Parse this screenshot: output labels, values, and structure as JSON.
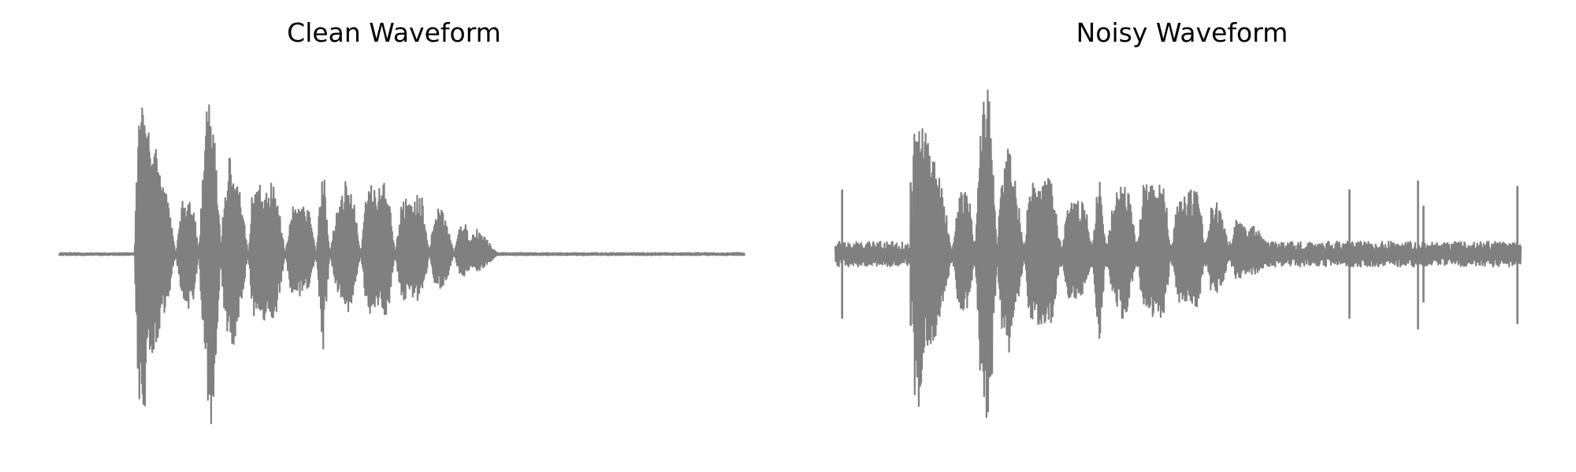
{
  "chart_data": [
    {
      "type": "line",
      "title": "Clean Waveform",
      "xlabel": "",
      "ylabel": "",
      "axes_visible": false,
      "grid": false,
      "color": "#808080",
      "x_range": [
        0,
        1
      ],
      "ylim": [
        -1,
        1
      ],
      "envelope": {
        "x": [
          0.0,
          0.11,
          0.116,
          0.125,
          0.13,
          0.14,
          0.15,
          0.16,
          0.17,
          0.18,
          0.188,
          0.196,
          0.204,
          0.21,
          0.216,
          0.222,
          0.228,
          0.236,
          0.24,
          0.246,
          0.252,
          0.256,
          0.262,
          0.268,
          0.276,
          0.282,
          0.288,
          0.296,
          0.305,
          0.315,
          0.33,
          0.34,
          0.345,
          0.355,
          0.365,
          0.375,
          0.385,
          0.395,
          0.405,
          0.412,
          0.418,
          0.425,
          0.432,
          0.44,
          0.45,
          0.46,
          0.47,
          0.475,
          0.48,
          0.49,
          0.5,
          0.51,
          0.52,
          0.53,
          0.54,
          0.548,
          0.556,
          0.566,
          0.576,
          0.584,
          0.592,
          0.6,
          0.61,
          0.62,
          0.63,
          0.64,
          0.65,
          0.66,
          0.666,
          0.672,
          0.68,
          0.69,
          0.7,
          0.706,
          0.712,
          0.72,
          0.8,
          1.0
        ],
        "upper": [
          0.0,
          0.0,
          0.82,
          0.86,
          0.7,
          0.6,
          0.47,
          0.28,
          0.0,
          0.3,
          0.35,
          0.28,
          0.0,
          0.55,
          0.87,
          1.0,
          0.7,
          0.0,
          0.35,
          0.5,
          0.6,
          0.55,
          0.4,
          0.25,
          0.0,
          0.37,
          0.4,
          0.38,
          0.39,
          0.42,
          0.0,
          0.3,
          0.25,
          0.27,
          0.25,
          0.0,
          0.55,
          0.0,
          0.27,
          0.34,
          0.42,
          0.36,
          0.25,
          0.0,
          0.42,
          0.38,
          0.36,
          0.4,
          0.38,
          0.0,
          0.32,
          0.3,
          0.34,
          0.34,
          0.0,
          0.25,
          0.27,
          0.18,
          0.0,
          0.17,
          0.17,
          0.1,
          0.14,
          0.1,
          0.05,
          0.0,
          0.0,
          0.0,
          0.0,
          0.0,
          0.0,
          0.0,
          0.0,
          0.0,
          0.0,
          0.0,
          0.0,
          0.0
        ],
        "lower": [
          0.0,
          0.0,
          -0.85,
          -0.86,
          -0.62,
          -0.51,
          -0.4,
          -0.24,
          0.0,
          -0.28,
          -0.32,
          -0.26,
          0.0,
          -0.6,
          -0.82,
          -1.0,
          -0.74,
          0.0,
          -0.32,
          -0.47,
          -0.55,
          -0.49,
          -0.36,
          -0.22,
          0.0,
          -0.34,
          -0.38,
          -0.4,
          -0.37,
          -0.39,
          0.0,
          -0.26,
          -0.22,
          -0.24,
          -0.2,
          0.0,
          -0.55,
          0.0,
          -0.22,
          -0.28,
          -0.35,
          -0.3,
          -0.2,
          0.0,
          -0.36,
          -0.34,
          -0.32,
          -0.36,
          -0.34,
          0.0,
          -0.27,
          -0.25,
          -0.28,
          -0.28,
          0.0,
          -0.19,
          -0.2,
          -0.14,
          0.0,
          -0.12,
          -0.12,
          -0.08,
          -0.1,
          -0.08,
          -0.04,
          0.0,
          0.0,
          0.0,
          0.0,
          0.0,
          0.0,
          0.0,
          0.0,
          0.0,
          0.0,
          0.0,
          0.0,
          0.0
        ]
      },
      "noise_floor": 0.005,
      "spikes": []
    },
    {
      "type": "line",
      "title": "Noisy Waveform",
      "xlabel": "",
      "ylabel": "",
      "axes_visible": false,
      "grid": false,
      "color": "#808080",
      "x_range": [
        0,
        1
      ],
      "ylim": [
        -1,
        1
      ],
      "envelope": {
        "x": [
          0.0,
          0.11,
          0.116,
          0.125,
          0.13,
          0.14,
          0.15,
          0.16,
          0.17,
          0.18,
          0.188,
          0.196,
          0.204,
          0.21,
          0.216,
          0.222,
          0.228,
          0.236,
          0.24,
          0.246,
          0.252,
          0.256,
          0.262,
          0.268,
          0.276,
          0.282,
          0.288,
          0.296,
          0.305,
          0.315,
          0.33,
          0.34,
          0.345,
          0.355,
          0.365,
          0.375,
          0.385,
          0.395,
          0.405,
          0.412,
          0.418,
          0.425,
          0.432,
          0.44,
          0.45,
          0.46,
          0.47,
          0.475,
          0.48,
          0.49,
          0.5,
          0.51,
          0.52,
          0.53,
          0.54,
          0.548,
          0.556,
          0.566,
          0.576,
          0.584,
          0.592,
          0.6,
          0.61,
          0.62,
          0.63,
          0.64,
          0.65,
          0.66,
          0.666,
          0.672,
          0.68,
          0.69,
          0.7,
          0.706,
          0.712,
          0.72,
          0.8,
          1.0
        ],
        "upper": [
          0.0,
          0.0,
          0.85,
          0.9,
          0.72,
          0.62,
          0.5,
          0.3,
          0.0,
          0.32,
          0.37,
          0.3,
          0.0,
          0.58,
          0.85,
          1.0,
          0.72,
          0.0,
          0.37,
          0.52,
          0.62,
          0.57,
          0.42,
          0.27,
          0.0,
          0.4,
          0.42,
          0.4,
          0.41,
          0.45,
          0.0,
          0.33,
          0.28,
          0.3,
          0.28,
          0.0,
          0.53,
          0.0,
          0.3,
          0.37,
          0.44,
          0.38,
          0.28,
          0.0,
          0.44,
          0.4,
          0.38,
          0.42,
          0.4,
          0.0,
          0.34,
          0.33,
          0.36,
          0.36,
          0.0,
          0.28,
          0.3,
          0.2,
          0.0,
          0.19,
          0.19,
          0.12,
          0.16,
          0.12,
          0.06,
          0.0,
          0.0,
          0.0,
          0.0,
          0.0,
          0.0,
          0.0,
          0.0,
          0.0,
          0.0,
          0.0,
          0.0,
          0.0
        ],
        "lower": [
          0.0,
          0.0,
          -0.88,
          -0.9,
          -0.64,
          -0.53,
          -0.42,
          -0.26,
          0.0,
          -0.3,
          -0.34,
          -0.28,
          0.0,
          -0.62,
          -0.84,
          -1.0,
          -0.76,
          0.0,
          -0.34,
          -0.49,
          -0.57,
          -0.51,
          -0.38,
          -0.24,
          0.0,
          -0.36,
          -0.4,
          -0.42,
          -0.39,
          -0.41,
          0.0,
          -0.28,
          -0.24,
          -0.26,
          -0.22,
          0.0,
          -0.53,
          0.0,
          -0.24,
          -0.3,
          -0.37,
          -0.32,
          -0.22,
          0.0,
          -0.38,
          -0.36,
          -0.34,
          -0.38,
          -0.36,
          0.0,
          -0.29,
          -0.27,
          -0.3,
          -0.3,
          0.0,
          -0.21,
          -0.22,
          -0.16,
          0.0,
          -0.14,
          -0.14,
          -0.1,
          -0.12,
          -0.1,
          -0.05,
          0.0,
          0.0,
          0.0,
          0.0,
          0.0,
          0.0,
          0.0,
          0.0,
          0.0,
          0.0,
          0.0,
          0.0,
          0.0
        ]
      },
      "noise_floor": 0.05,
      "spikes": [
        {
          "x": 0.01,
          "high": 0.36,
          "low": -0.36
        },
        {
          "x": 0.11,
          "high": 0.4,
          "low": -0.4
        },
        {
          "x": 0.75,
          "high": 0.36,
          "low": -0.36
        },
        {
          "x": 0.85,
          "high": 0.41,
          "low": -0.42
        },
        {
          "x": 0.858,
          "high": 0.27,
          "low": -0.27
        },
        {
          "x": 0.995,
          "high": 0.38,
          "low": -0.39
        }
      ]
    }
  ]
}
